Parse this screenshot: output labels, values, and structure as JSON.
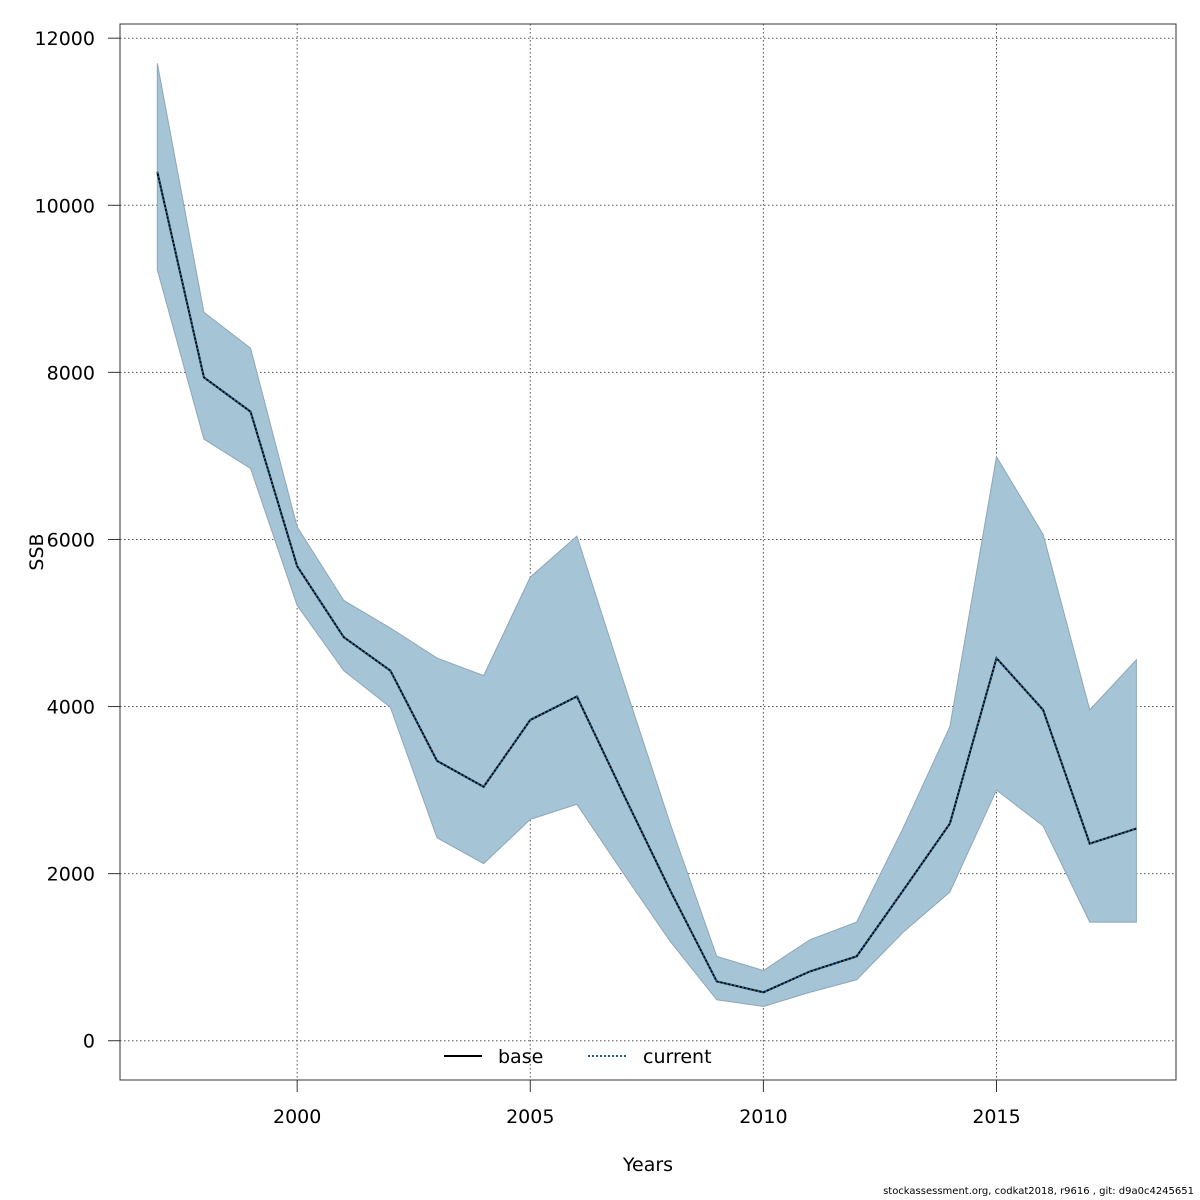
{
  "chart_data": {
    "type": "line",
    "title": "",
    "xlabel": "Years",
    "ylabel": "SSB",
    "xlim": [
      1996.2,
      2018.85
    ],
    "ylim": [
      -470,
      12170
    ],
    "x_ticks": [
      2000,
      2005,
      2010,
      2015
    ],
    "y_ticks": [
      0,
      2000,
      4000,
      6000,
      8000,
      10000,
      12000
    ],
    "grid": true,
    "legend_position": "bottom-center",
    "x": [
      1997,
      1998,
      1999,
      2000,
      2001,
      2002,
      2003,
      2004,
      2005,
      2006,
      2007,
      2008,
      2009,
      2010,
      2011,
      2012,
      2013,
      2014,
      2015,
      2016,
      2017,
      2018
    ],
    "band": {
      "upper": [
        11700,
        8720,
        8290,
        6150,
        5270,
        4940,
        4580,
        4370,
        5550,
        6040,
        4300,
        2600,
        1010,
        840,
        1210,
        1420,
        2550,
        3760,
        6990,
        6060,
        3960,
        4560
      ],
      "lower": [
        9230,
        7200,
        6850,
        5210,
        4430,
        3990,
        2430,
        2120,
        2650,
        2830,
        2000,
        1190,
        490,
        410,
        580,
        730,
        1300,
        1780,
        3000,
        2570,
        1420,
        1420
      ],
      "fill": "#a5c4d5",
      "stroke": "#8ea7b6"
    },
    "series": [
      {
        "name": "base",
        "style": "solid",
        "color": "#000000",
        "values": [
          10400,
          7940,
          7530,
          5680,
          4830,
          4430,
          3350,
          3040,
          3840,
          4120,
          2950,
          1800,
          710,
          580,
          830,
          1010,
          1800,
          2600,
          4580,
          3960,
          2360,
          2540
        ]
      },
      {
        "name": "current",
        "style": "dotted",
        "color": "#1f5f8b",
        "values": [
          10400,
          7940,
          7530,
          5680,
          4830,
          4430,
          3350,
          3040,
          3840,
          4120,
          2950,
          1800,
          710,
          580,
          830,
          1010,
          1800,
          2600,
          4580,
          3960,
          2360,
          2540
        ]
      }
    ]
  },
  "footer": "stockassessment.org, codkat2018, r9616 , git: d9a0c4245651"
}
